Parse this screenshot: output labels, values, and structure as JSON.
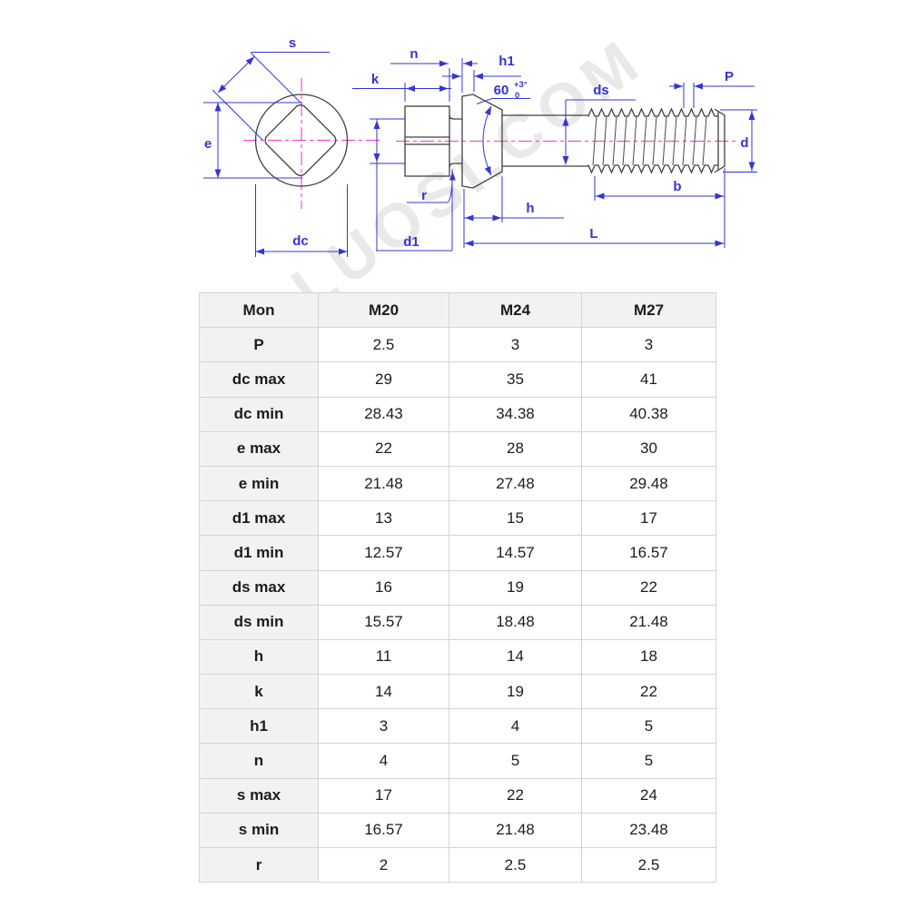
{
  "drawing": {
    "watermark": "LUOSI.COM",
    "labels": {
      "s": "s",
      "e": "e",
      "dc": "dc",
      "k": "k",
      "n": "n",
      "h1": "h1",
      "angle": "60",
      "angle_tol_plus": "+3°",
      "angle_tol_zero": "0",
      "ds": "ds",
      "P": "P",
      "d": "d",
      "b": "b",
      "h": "h",
      "L": "L",
      "d1": "d1",
      "r": "r"
    },
    "colors": {
      "dimension": "#3434d6",
      "centerline": "#fa4ccf",
      "outline": "#404040",
      "watermark": "#e9e9e9",
      "table_border": "#d4d4d4",
      "table_head_bg": "#f2f2f2",
      "table_text": "#1c1c1c"
    }
  },
  "table": {
    "columns": [
      "Mon",
      "M20",
      "M24",
      "M27"
    ],
    "rows": [
      {
        "label": "P",
        "values": [
          "2.5",
          "3",
          "3"
        ]
      },
      {
        "label": "dc max",
        "values": [
          "29",
          "35",
          "41"
        ]
      },
      {
        "label": "dc min",
        "values": [
          "28.43",
          "34.38",
          "40.38"
        ]
      },
      {
        "label": "e max",
        "values": [
          "22",
          "28",
          "30"
        ]
      },
      {
        "label": "e min",
        "values": [
          "21.48",
          "27.48",
          "29.48"
        ]
      },
      {
        "label": "d1 max",
        "values": [
          "13",
          "15",
          "17"
        ]
      },
      {
        "label": "d1 min",
        "values": [
          "12.57",
          "14.57",
          "16.57"
        ]
      },
      {
        "label": "ds max",
        "values": [
          "16",
          "19",
          "22"
        ]
      },
      {
        "label": "ds min",
        "values": [
          "15.57",
          "18.48",
          "21.48"
        ]
      },
      {
        "label": "h",
        "values": [
          "11",
          "14",
          "18"
        ]
      },
      {
        "label": "k",
        "values": [
          "14",
          "19",
          "22"
        ]
      },
      {
        "label": "h1",
        "values": [
          "3",
          "4",
          "5"
        ]
      },
      {
        "label": "n",
        "values": [
          "4",
          "5",
          "5"
        ]
      },
      {
        "label": "s max",
        "values": [
          "17",
          "22",
          "24"
        ]
      },
      {
        "label": "s min",
        "values": [
          "16.57",
          "21.48",
          "23.48"
        ]
      },
      {
        "label": "r",
        "values": [
          "2",
          "2.5",
          "2.5"
        ]
      }
    ]
  }
}
